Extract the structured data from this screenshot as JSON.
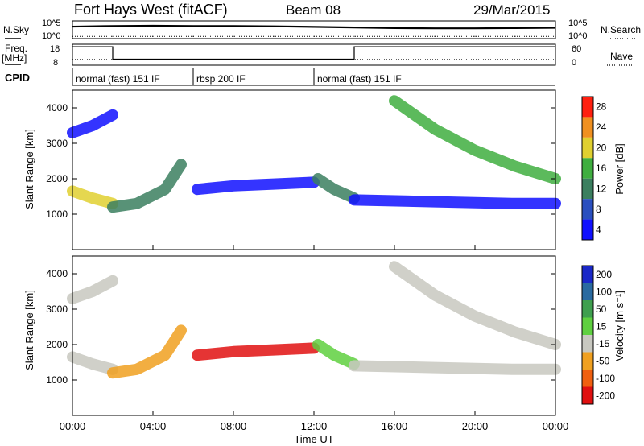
{
  "header": {
    "title": "Fort Hays West (fitACF)",
    "beam": "Beam 08",
    "date": "29/Mar/2015"
  },
  "labels": {
    "nsky": "N.Sky",
    "nsearch": "N.Search",
    "freq": "Freq.",
    "mhz": "[MHz]",
    "nave": "Nave",
    "cpid": "CPID",
    "slant_range": "Slant Range [km]",
    "power_label": "Power [dB]",
    "velocity_label": "Velocity [m s⁻¹]",
    "xlabel": "Time UT",
    "nsky_ticks": [
      "10^5",
      "10^0"
    ],
    "nsearch_ticks": [
      "10^5",
      "10^0"
    ],
    "freq_ticks": [
      "18",
      "8"
    ],
    "nave_ticks": [
      "60",
      "0"
    ]
  },
  "cpid_segments": [
    {
      "label": "normal (fast) 151 IF",
      "start": 0,
      "end": 6
    },
    {
      "label": "rbsp 200 IF",
      "start": 6,
      "end": 12
    },
    {
      "label": "normal (fast) 151 IF",
      "start": 12,
      "end": 24
    }
  ],
  "chart_data": [
    {
      "type": "line",
      "title": "N.Sky / N.Search",
      "x": [
        0,
        2,
        4,
        6,
        8,
        10,
        12,
        14,
        16,
        18,
        20,
        22,
        24
      ],
      "series": [
        {
          "name": "N.Sky",
          "values": [
            3.6,
            3.8,
            3.9,
            3.8,
            3.8,
            3.7,
            3.5,
            3.3,
            3.1,
            3.0,
            3.0,
            3.1,
            3.2
          ]
        },
        {
          "name": "N.Search",
          "values": [
            0.2,
            0.2,
            0.2,
            0.2,
            0.2,
            0.2,
            0.2,
            0.2,
            0.2,
            0.2,
            0.2,
            0.2,
            0.2
          ]
        }
      ]
    },
    {
      "type": "line",
      "title": "Freq. / Nave",
      "x": [
        0,
        2,
        2,
        14,
        14,
        24
      ],
      "series": [
        {
          "name": "Freq.",
          "values": [
            17.5,
            17.5,
            10.5,
            10.5,
            17.5,
            17.5
          ]
        },
        {
          "name": "Nave",
          "values": [
            14,
            14,
            14,
            14,
            14,
            14
          ]
        }
      ]
    },
    {
      "type": "heatmap",
      "title": "Power [dB]",
      "xlabel": "Time UT",
      "ylabel": "Slant Range [km]",
      "xticks": [
        "00:00",
        "04:00",
        "08:00",
        "12:00",
        "16:00",
        "20:00",
        "00:00"
      ],
      "yticks": [
        1000,
        2000,
        3000,
        4000
      ],
      "xlim": [
        0,
        24
      ],
      "ylim": [
        0,
        4500
      ],
      "colorbar": {
        "label": "Power [dB]",
        "ticks": [
          4,
          8,
          12,
          16,
          20,
          24,
          28
        ],
        "colors": [
          "#1010ff",
          "#2a4fbf",
          "#3b7f5f",
          "#3fae3f",
          "#e0d030",
          "#f09020",
          "#ff2010"
        ]
      },
      "bands": [
        {
          "t": [
            0.0,
            1.0,
            2.0
          ],
          "r": [
            1650,
            1450,
            1300
          ],
          "level": 22
        },
        {
          "t": [
            2.0,
            3.2,
            4.6,
            5.4
          ],
          "r": [
            1200,
            1300,
            1700,
            2400
          ],
          "level": 12
        },
        {
          "t": [
            6.2,
            8.0,
            10.0,
            12.0
          ],
          "r": [
            1700,
            1800,
            1850,
            1900
          ],
          "level": 6
        },
        {
          "t": [
            12.2,
            13.0,
            14.0
          ],
          "r": [
            2000,
            1700,
            1450
          ],
          "level": 14
        },
        {
          "t": [
            14.0,
            18.0,
            22.0,
            24.0
          ],
          "r": [
            1400,
            1350,
            1300,
            1300
          ],
          "level": 7
        },
        {
          "t": [
            16.0,
            18.0,
            20.0,
            22.0,
            24.0
          ],
          "r": [
            4200,
            3400,
            2800,
            2350,
            2000
          ],
          "level": 18
        },
        {
          "t": [
            0.0,
            1.0,
            2.0
          ],
          "r": [
            3300,
            3500,
            3800
          ],
          "level": 6
        }
      ]
    },
    {
      "type": "heatmap",
      "title": "Velocity [m s⁻¹]",
      "xlabel": "Time UT",
      "ylabel": "Slant Range [km]",
      "xticks": [
        "00:00",
        "04:00",
        "08:00",
        "12:00",
        "16:00",
        "20:00",
        "00:00"
      ],
      "yticks": [
        1000,
        2000,
        3000,
        4000
      ],
      "xlim": [
        0,
        24
      ],
      "ylim": [
        0,
        4500
      ],
      "colorbar": {
        "label": "Velocity [m s⁻¹]",
        "ticks": [
          200,
          100,
          50,
          15,
          -15,
          -50,
          -100,
          -200
        ],
        "colors": [
          "#1a28c8",
          "#2a6aa0",
          "#3f9f4f",
          "#5fd040",
          "#c8c8c0",
          "#f0a020",
          "#f06010",
          "#e01010"
        ]
      },
      "bands": [
        {
          "t": [
            0.0,
            1.0,
            2.0
          ],
          "r": [
            1650,
            1450,
            1300
          ],
          "level": 0
        },
        {
          "t": [
            2.0,
            3.2,
            4.6,
            5.4
          ],
          "r": [
            1200,
            1300,
            1700,
            2400
          ],
          "level": -30
        },
        {
          "t": [
            6.2,
            8.0,
            10.0,
            12.0
          ],
          "r": [
            1700,
            1800,
            1850,
            1900
          ],
          "level": -200
        },
        {
          "t": [
            12.2,
            13.0,
            14.0
          ],
          "r": [
            2000,
            1700,
            1450
          ],
          "level": 40
        },
        {
          "t": [
            14.0,
            18.0,
            22.0,
            24.0
          ],
          "r": [
            1400,
            1350,
            1300,
            1300
          ],
          "level": 0
        },
        {
          "t": [
            16.0,
            18.0,
            20.0,
            22.0,
            24.0
          ],
          "r": [
            4200,
            3400,
            2800,
            2350,
            2000
          ],
          "level": 0
        },
        {
          "t": [
            0.0,
            1.0,
            2.0
          ],
          "r": [
            3300,
            3500,
            3800
          ],
          "level": 0
        }
      ]
    }
  ]
}
